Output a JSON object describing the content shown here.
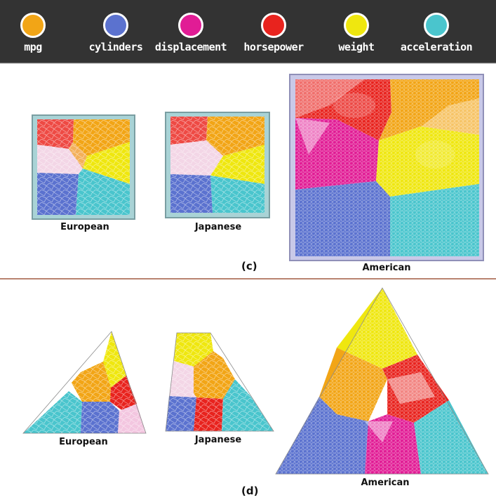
{
  "legend": [
    {
      "label": "mpg",
      "color": "#f2a516"
    },
    {
      "label": "cylinders",
      "color": "#5b72cf"
    },
    {
      "label": "displacement",
      "color": "#e11c95"
    },
    {
      "label": "horsepower",
      "color": "#e8231e"
    },
    {
      "label": "weight",
      "color": "#efe70f"
    },
    {
      "label": "acceleration",
      "color": "#4ac5cd"
    }
  ],
  "panel_c": {
    "tag": "(c)",
    "labels": [
      "European",
      "Japanese",
      "American"
    ]
  },
  "panel_d": {
    "tag": "(d)",
    "labels": [
      "European",
      "Japanese",
      "American"
    ]
  }
}
